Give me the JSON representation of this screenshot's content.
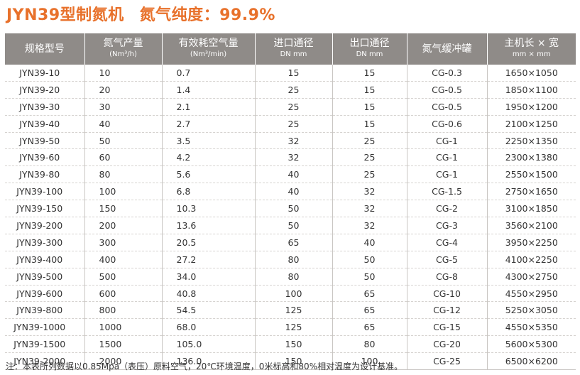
{
  "title": {
    "model": "JYN39型制氮机",
    "purity": "氮气纯度：99.9%"
  },
  "table": {
    "headers": [
      {
        "line1": "规格型号",
        "line2": ""
      },
      {
        "line1": "氮气产量",
        "line2": "(Nm³/h)"
      },
      {
        "line1": "有效耗空气量",
        "line2": "(Nm³/min)"
      },
      {
        "line1": "进口通径",
        "line2": "DN mm"
      },
      {
        "line1": "出口通径",
        "line2": "DN mm"
      },
      {
        "line1": "氮气缓冲罐",
        "line2": ""
      },
      {
        "line1": "主机长 × 宽",
        "line2": "mm × mm"
      }
    ],
    "rows": [
      [
        "JYN39-10",
        "10",
        "0.7",
        "15",
        "15",
        "CG-0.3",
        "1650×1050"
      ],
      [
        "JYN39-20",
        "20",
        "1.4",
        "25",
        "15",
        "CG-0.5",
        "1850×1100"
      ],
      [
        "JYN39-30",
        "30",
        "2.1",
        "25",
        "15",
        "CG-0.5",
        "1950×1200"
      ],
      [
        "JYN39-40",
        "40",
        "2.7",
        "25",
        "15",
        "CG-0.6",
        "2100×1250"
      ],
      [
        "JYN39-50",
        "50",
        "3.5",
        "32",
        "25",
        "CG-1",
        "2250×1350"
      ],
      [
        "JYN39-60",
        "60",
        "4.2",
        "32",
        "25",
        "CG-1",
        "2300×1380"
      ],
      [
        "JYN39-80",
        "80",
        "5.6",
        "40",
        "25",
        "CG-1",
        "2550×1500"
      ],
      [
        "JYN39-100",
        "100",
        "6.8",
        "40",
        "32",
        "CG-1.5",
        "2750×1650"
      ],
      [
        "JYN39-150",
        "150",
        "10.3",
        "50",
        "32",
        "CG-2",
        "3100×1850"
      ],
      [
        "JYN39-200",
        "200",
        "13.6",
        "50",
        "32",
        "CG-3",
        "3560×2100"
      ],
      [
        "JYN39-300",
        "300",
        "20.5",
        "65",
        "40",
        "CG-4",
        "3950×2250"
      ],
      [
        "JYN39-400",
        "400",
        "27.2",
        "80",
        "50",
        "CG-5",
        "4100×2250"
      ],
      [
        "JYN39-500",
        "500",
        "34.0",
        "80",
        "50",
        "CG-8",
        "4300×2750"
      ],
      [
        "JYN39-600",
        "600",
        "40.8",
        "100",
        "65",
        "CG-10",
        "4550×2950"
      ],
      [
        "JYN39-800",
        "800",
        "54.5",
        "125",
        "65",
        "CG-12",
        "5250×3050"
      ],
      [
        "JYN39-1000",
        "1000",
        "68.0",
        "125",
        "65",
        "CG-15",
        "4550×5350"
      ],
      [
        "JYN39-1500",
        "1500",
        "105.0",
        "150",
        "80",
        "CG-20",
        "5600×5300"
      ],
      [
        "JYN39-2000",
        "2000",
        "136.0",
        "150",
        "100",
        "CG-25",
        "6500×6200"
      ]
    ]
  },
  "note": "注：本表所列数据以0.85Mpa（表压）原料空气，20℃环境温度，0米标高和80%相对温度为设计基准。",
  "colors": {
    "title": "#e8712b",
    "header_bg": "#8f8b88",
    "header_text": "#ffffff"
  }
}
